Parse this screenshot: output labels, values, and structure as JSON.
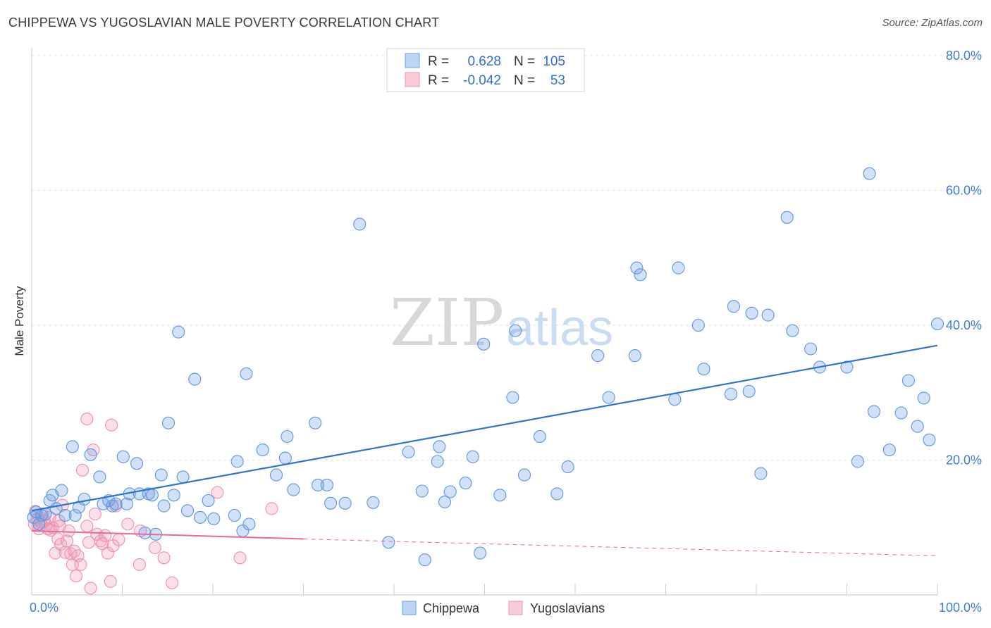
{
  "header": {
    "title": "CHIPPEWA VS YUGOSLAVIAN MALE POVERTY CORRELATION CHART",
    "source": "Source: ZipAtlas.com"
  },
  "watermark": {
    "zip": "ZIP",
    "atlas": "atlas"
  },
  "stats_legend": {
    "rows": [
      {
        "r_label": "R =",
        "r_value": "0.628",
        "n_label": "N =",
        "n_value": "105",
        "color": "#a8c8f0",
        "edge": "#4a86d8"
      },
      {
        "r_label": "R =",
        "r_value": "-0.042",
        "n_label": "N =",
        "n_value": "53",
        "color": "#f6c0d0",
        "edge": "#e87aa0"
      }
    ]
  },
  "chart_data": {
    "type": "scatter",
    "title": "CHIPPEWA VS YUGOSLAVIAN MALE POVERTY CORRELATION CHART",
    "xlabel": "",
    "ylabel": "Male Poverty",
    "xlim": [
      0,
      100
    ],
    "ylim": [
      0,
      80
    ],
    "x_tick_labels": [
      "0.0%",
      "100.0%"
    ],
    "y_ticks": [
      20,
      40,
      60,
      80
    ],
    "y_tick_labels": [
      "20.0%",
      "40.0%",
      "60.0%",
      "80.0%"
    ],
    "grid": true,
    "legend_position": "bottom",
    "series": [
      {
        "name": "Chippewa",
        "color": "#6fa3e6",
        "trend": {
          "x0": 0,
          "y0": 12.5,
          "x1": 100,
          "y1": 37.0,
          "color": "#2f74d0"
        },
        "points": [
          [
            0.2,
            11.5
          ],
          [
            0.5,
            12.3
          ],
          [
            0.8,
            10.5
          ],
          [
            1.1,
            11.8
          ],
          [
            1.5,
            12.0
          ],
          [
            2.0,
            14.0
          ],
          [
            2.3,
            14.8
          ],
          [
            2.7,
            12.8
          ],
          [
            3.3,
            15.5
          ],
          [
            3.7,
            11.8
          ],
          [
            4.5,
            22.0
          ],
          [
            4.8,
            11.8
          ],
          [
            5.2,
            13.0
          ],
          [
            5.8,
            14.2
          ],
          [
            6.5,
            20.8
          ],
          [
            7.5,
            17.5
          ],
          [
            7.9,
            13.5
          ],
          [
            8.5,
            14.0
          ],
          [
            8.9,
            13.2
          ],
          [
            9.3,
            13.5
          ],
          [
            10.1,
            20.5
          ],
          [
            10.5,
            13.5
          ],
          [
            10.8,
            15.0
          ],
          [
            11.6,
            19.5
          ],
          [
            11.9,
            15.0
          ],
          [
            12.5,
            9.2
          ],
          [
            12.9,
            15.0
          ],
          [
            13.3,
            14.8
          ],
          [
            13.7,
            9.0
          ],
          [
            14.3,
            17.8
          ],
          [
            14.6,
            13.2
          ],
          [
            15.1,
            25.5
          ],
          [
            15.7,
            14.8
          ],
          [
            16.2,
            39.0
          ],
          [
            16.7,
            17.5
          ],
          [
            17.2,
            12.5
          ],
          [
            18.0,
            32.0
          ],
          [
            18.6,
            11.5
          ],
          [
            19.5,
            14.0
          ],
          [
            20.1,
            11.3
          ],
          [
            22.7,
            19.8
          ],
          [
            22.4,
            11.8
          ],
          [
            23.3,
            9.5
          ],
          [
            23.7,
            32.8
          ],
          [
            24.0,
            10.5
          ],
          [
            25.5,
            21.5
          ],
          [
            27.0,
            17.8
          ],
          [
            28.0,
            20.3
          ],
          [
            28.2,
            23.5
          ],
          [
            28.9,
            15.6
          ],
          [
            31.3,
            25.5
          ],
          [
            31.6,
            16.3
          ],
          [
            32.6,
            16.3
          ],
          [
            33.0,
            13.6
          ],
          [
            34.6,
            13.6
          ],
          [
            36.2,
            55.0
          ],
          [
            37.7,
            13.7
          ],
          [
            39.4,
            7.8
          ],
          [
            41.6,
            21.2
          ],
          [
            43.1,
            15.4
          ],
          [
            43.4,
            5.2
          ],
          [
            45.0,
            22.0
          ],
          [
            44.8,
            19.8
          ],
          [
            45.6,
            13.8
          ],
          [
            46.2,
            15.3
          ],
          [
            48.7,
            20.5
          ],
          [
            47.9,
            16.6
          ],
          [
            49.5,
            6.2
          ],
          [
            49.9,
            37.2
          ],
          [
            51.7,
            14.8
          ],
          [
            53.1,
            29.3
          ],
          [
            53.4,
            39.2
          ],
          [
            54.4,
            17.8
          ],
          [
            56.1,
            23.5
          ],
          [
            58.0,
            15.0
          ],
          [
            59.2,
            19.0
          ],
          [
            62.5,
            35.5
          ],
          [
            63.7,
            29.3
          ],
          [
            66.6,
            35.5
          ],
          [
            66.8,
            48.5
          ],
          [
            67.2,
            47.5
          ],
          [
            71.0,
            29.0
          ],
          [
            71.4,
            48.5
          ],
          [
            73.6,
            40.0
          ],
          [
            74.2,
            33.5
          ],
          [
            77.2,
            29.8
          ],
          [
            77.5,
            42.8
          ],
          [
            79.2,
            30.2
          ],
          [
            79.5,
            41.8
          ],
          [
            80.5,
            18.0
          ],
          [
            81.3,
            41.5
          ],
          [
            83.4,
            56.0
          ],
          [
            84.0,
            39.2
          ],
          [
            86.0,
            36.5
          ],
          [
            87.0,
            33.8
          ],
          [
            90.0,
            33.8
          ],
          [
            91.2,
            19.8
          ],
          [
            92.5,
            62.5
          ],
          [
            93.0,
            27.2
          ],
          [
            94.7,
            21.5
          ],
          [
            96.0,
            27.0
          ],
          [
            96.8,
            31.8
          ],
          [
            97.8,
            25.0
          ],
          [
            98.5,
            29.2
          ],
          [
            99.1,
            23.0
          ],
          [
            100.0,
            40.2
          ]
        ]
      },
      {
        "name": "Yugoslavians",
        "color": "#f09ab6",
        "trend": {
          "x0": 0,
          "y0": 9.5,
          "x1": 30,
          "y1": 8.3,
          "x2": 100,
          "y2": 5.8,
          "color": "#e96a98"
        },
        "points": [
          [
            0.3,
            10.5
          ],
          [
            0.6,
            11.2
          ],
          [
            0.8,
            9.8
          ],
          [
            1.0,
            10.8
          ],
          [
            1.2,
            12.0
          ],
          [
            1.4,
            11.0
          ],
          [
            1.6,
            10.3
          ],
          [
            1.8,
            9.8
          ],
          [
            2.0,
            11.5
          ],
          [
            2.3,
            10.0
          ],
          [
            2.6,
            6.2
          ],
          [
            2.9,
            8.3
          ],
          [
            3.0,
            11.0
          ],
          [
            3.2,
            7.5
          ],
          [
            3.4,
            13.3
          ],
          [
            3.7,
            6.3
          ],
          [
            3.9,
            8.0
          ],
          [
            4.1,
            9.5
          ],
          [
            4.3,
            6.1
          ],
          [
            4.5,
            4.5
          ],
          [
            4.7,
            6.5
          ],
          [
            4.9,
            2.8
          ],
          [
            5.1,
            5.8
          ],
          [
            5.4,
            4.5
          ],
          [
            5.6,
            18.5
          ],
          [
            6.1,
            10.2
          ],
          [
            6.3,
            7.8
          ],
          [
            6.5,
            1.0
          ],
          [
            6.8,
            21.5
          ],
          [
            7.0,
            12.0
          ],
          [
            7.2,
            9.0
          ],
          [
            7.6,
            8.0
          ],
          [
            7.8,
            7.6
          ],
          [
            8.1,
            8.8
          ],
          [
            8.4,
            6.2
          ],
          [
            8.7,
            2.0
          ],
          [
            9.0,
            7.3
          ],
          [
            9.3,
            13.2
          ],
          [
            9.6,
            8.2
          ],
          [
            10.6,
            10.5
          ],
          [
            11.9,
            4.5
          ],
          [
            12.0,
            9.5
          ],
          [
            13.6,
            7.0
          ],
          [
            14.6,
            5.5
          ],
          [
            15.5,
            1.8
          ],
          [
            20.5,
            15.2
          ],
          [
            23.0,
            5.5
          ],
          [
            26.5,
            12.8
          ],
          [
            8.8,
            25.2
          ],
          [
            6.1,
            26.1
          ],
          [
            3.1,
            10.2
          ],
          [
            2.1,
            9.6
          ],
          [
            0.4,
            12.4
          ]
        ]
      }
    ]
  }
}
